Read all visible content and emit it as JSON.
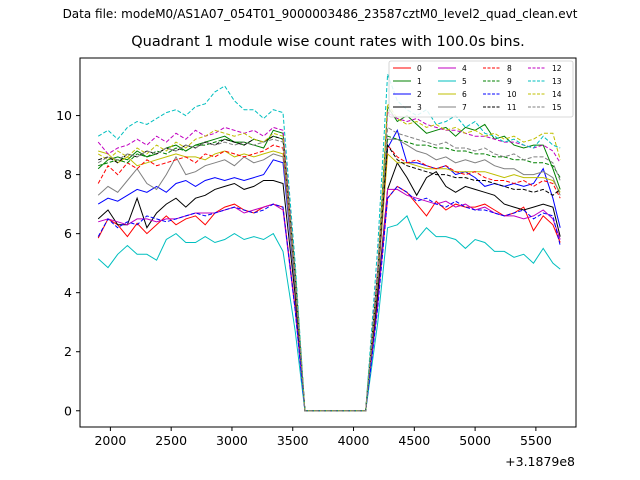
{
  "figure": {
    "suptitle": "Data file: modeM0/AS1A07_054T01_9000003486_23587cztM0_level2_quad_clean.evt"
  },
  "chart_data": {
    "type": "line",
    "title": "Quadrant 1 module wise count rates with 100.0s bins.",
    "xlabel": "",
    "ylabel": "",
    "x_offset_text": "+3.1879e8",
    "xlim": [
      1750,
      5830
    ],
    "ylim": [
      -0.55,
      11.95
    ],
    "xticks": [
      2000,
      2500,
      3000,
      3500,
      4000,
      4500,
      5000,
      5500
    ],
    "xtick_labels": [
      "2000",
      "2500",
      "3000",
      "3500",
      "4000",
      "4500",
      "5000",
      "5500"
    ],
    "yticks": [
      0,
      2,
      4,
      6,
      8,
      10
    ],
    "ytick_labels": [
      "0",
      "2",
      "4",
      "6",
      "8",
      "10"
    ],
    "grid": false,
    "legend_location": "top-right",
    "legend_columns": 4,
    "x": [
      1900,
      1980,
      2060,
      2140,
      2220,
      2300,
      2380,
      2460,
      2540,
      2620,
      2700,
      2780,
      2860,
      2940,
      3020,
      3100,
      3180,
      3260,
      3340,
      3420,
      3520,
      3600,
      3700,
      3800,
      3900,
      4000,
      4100,
      4200,
      4280,
      4360,
      4440,
      4520,
      4600,
      4680,
      4760,
      4840,
      4920,
      5000,
      5080,
      5160,
      5240,
      5320,
      5400,
      5480,
      5560,
      5640,
      5700
    ],
    "series": [
      {
        "name": "0",
        "color": "#ff0000",
        "dash": "solid",
        "values": [
          5.85,
          6.5,
          6.3,
          5.9,
          6.35,
          6.0,
          6.3,
          6.6,
          6.3,
          6.5,
          6.6,
          6.3,
          6.7,
          6.9,
          7.0,
          6.8,
          6.7,
          6.9,
          7.0,
          6.9,
          3.5,
          0,
          0,
          0,
          0,
          0,
          0,
          3.7,
          7.2,
          7.6,
          7.4,
          7.0,
          6.6,
          7.1,
          6.8,
          7.0,
          6.9,
          6.9,
          7.0,
          6.8,
          6.6,
          6.7,
          6.9,
          6.1,
          6.6,
          6.3,
          5.7
        ]
      },
      {
        "name": "1",
        "color": "#008000",
        "dash": "solid",
        "values": [
          8.2,
          8.5,
          8.6,
          8.5,
          8.8,
          8.6,
          8.7,
          8.9,
          9.0,
          8.8,
          9.0,
          9.1,
          9.2,
          9.3,
          9.1,
          9.1,
          9.0,
          8.9,
          9.5,
          9.4,
          4.7,
          0,
          0,
          0,
          0,
          0,
          0,
          4.8,
          10.3,
          9.8,
          10.0,
          9.7,
          9.4,
          9.5,
          9.6,
          9.3,
          9.6,
          9.5,
          9.7,
          9.2,
          9.3,
          9.0,
          8.9,
          9.0,
          9.0,
          8.2,
          7.5
        ]
      },
      {
        "name": "2",
        "color": "#0000ff",
        "dash": "solid",
        "values": [
          7.0,
          7.2,
          7.1,
          7.3,
          7.5,
          7.4,
          7.6,
          7.4,
          7.7,
          7.8,
          7.6,
          7.8,
          7.9,
          7.8,
          7.9,
          7.8,
          7.9,
          8.0,
          8.5,
          8.4,
          4.2,
          0,
          0,
          0,
          0,
          0,
          0,
          4.3,
          8.9,
          9.5,
          8.4,
          8.4,
          8.3,
          8.2,
          8.3,
          8.0,
          8.1,
          7.9,
          7.6,
          7.7,
          7.6,
          7.7,
          7.6,
          7.7,
          8.2,
          7.2,
          6.2
        ]
      },
      {
        "name": "3",
        "color": "#000000",
        "dash": "solid",
        "values": [
          6.5,
          6.8,
          6.3,
          6.3,
          7.2,
          6.2,
          6.7,
          7.0,
          7.2,
          6.9,
          7.2,
          7.3,
          7.5,
          7.6,
          7.7,
          7.5,
          7.6,
          7.8,
          7.8,
          7.7,
          3.9,
          0,
          0,
          0,
          0,
          0,
          0,
          4.0,
          7.5,
          8.4,
          7.9,
          7.3,
          7.9,
          8.1,
          7.6,
          7.4,
          7.6,
          7.5,
          7.4,
          7.3,
          7.0,
          6.9,
          6.8,
          6.9,
          7.0,
          6.9,
          5.9
        ]
      },
      {
        "name": "4",
        "color": "#c000c0",
        "dash": "solid",
        "values": [
          6.4,
          6.5,
          6.4,
          6.3,
          6.5,
          6.5,
          6.4,
          6.5,
          6.5,
          6.6,
          6.7,
          6.7,
          6.7,
          6.8,
          6.9,
          6.7,
          6.8,
          6.9,
          7.0,
          6.8,
          3.4,
          0,
          0,
          0,
          0,
          0,
          0,
          3.6,
          7.5,
          7.5,
          7.3,
          7.2,
          7.1,
          7.0,
          7.1,
          6.9,
          7.0,
          6.8,
          6.9,
          6.7,
          6.6,
          6.6,
          6.5,
          6.6,
          6.8,
          6.5,
          5.8
        ]
      },
      {
        "name": "5",
        "color": "#00bfbf",
        "dash": "solid",
        "values": [
          5.15,
          4.85,
          5.3,
          5.6,
          5.3,
          5.3,
          5.1,
          5.8,
          6.0,
          5.7,
          5.7,
          5.9,
          5.7,
          5.8,
          6.0,
          5.8,
          5.9,
          5.8,
          6.0,
          5.4,
          2.7,
          0,
          0,
          0,
          0,
          0,
          0,
          3.0,
          6.2,
          6.3,
          6.6,
          5.8,
          6.2,
          5.9,
          5.9,
          5.8,
          5.5,
          5.8,
          5.7,
          5.4,
          5.4,
          5.2,
          5.3,
          5.0,
          5.5,
          5.0,
          4.8
        ]
      },
      {
        "name": "6",
        "color": "#bfbf00",
        "dash": "solid",
        "values": [
          8.8,
          8.7,
          8.4,
          8.6,
          8.3,
          8.4,
          8.5,
          8.6,
          8.7,
          8.6,
          8.6,
          8.5,
          8.7,
          8.8,
          8.6,
          8.7,
          8.6,
          8.7,
          8.8,
          8.7,
          4.3,
          0,
          0,
          0,
          0,
          0,
          0,
          4.4,
          8.7,
          8.4,
          8.4,
          8.3,
          8.2,
          8.2,
          8.2,
          8.1,
          8.1,
          8.1,
          8.1,
          8.0,
          7.9,
          8.0,
          7.9,
          7.9,
          7.9,
          7.8,
          7.4
        ]
      },
      {
        "name": "7",
        "color": "#808080",
        "dash": "solid",
        "values": [
          7.3,
          7.6,
          7.4,
          7.8,
          8.2,
          7.7,
          7.5,
          8.0,
          8.6,
          8.0,
          8.1,
          8.3,
          8.4,
          8.5,
          8.3,
          8.6,
          8.4,
          8.5,
          8.7,
          8.6,
          4.3,
          0,
          0,
          0,
          0,
          0,
          0,
          4.4,
          9.2,
          9.2,
          9.0,
          8.8,
          8.7,
          8.5,
          8.6,
          8.4,
          8.5,
          8.4,
          8.5,
          8.3,
          8.2,
          8.2,
          8.0,
          8.0,
          8.1,
          7.9,
          7.3
        ]
      },
      {
        "name": "8",
        "color": "#ff0000",
        "dash": "dashed",
        "values": [
          7.7,
          8.3,
          8.0,
          8.4,
          8.2,
          8.5,
          8.3,
          8.4,
          8.5,
          8.6,
          8.4,
          8.7,
          8.6,
          8.8,
          8.7,
          8.6,
          8.7,
          8.8,
          9.0,
          8.9,
          4.5,
          0,
          0,
          0,
          0,
          0,
          0,
          4.5,
          9.0,
          8.6,
          8.4,
          8.5,
          8.3,
          8.2,
          8.3,
          8.1,
          8.0,
          8.1,
          7.9,
          7.8,
          7.8,
          7.7,
          7.8,
          7.6,
          7.8,
          7.7,
          7.2
        ]
      },
      {
        "name": "9",
        "color": "#008000",
        "dash": "dashed",
        "values": [
          8.3,
          8.4,
          8.5,
          8.4,
          8.7,
          8.6,
          8.8,
          8.7,
          8.9,
          8.8,
          9.0,
          9.0,
          9.1,
          9.2,
          9.1,
          9.0,
          9.2,
          9.1,
          9.3,
          9.2,
          4.6,
          0,
          0,
          0,
          0,
          0,
          0,
          4.6,
          9.3,
          9.2,
          9.1,
          9.0,
          9.0,
          8.9,
          8.9,
          8.8,
          8.8,
          8.7,
          8.7,
          8.6,
          8.6,
          8.5,
          8.5,
          8.4,
          8.4,
          8.3,
          7.9
        ]
      },
      {
        "name": "10",
        "color": "#0000ff",
        "dash": "dashed",
        "values": [
          5.9,
          6.5,
          6.2,
          6.4,
          6.3,
          6.6,
          6.5,
          6.4,
          6.5,
          6.6,
          6.7,
          6.6,
          6.7,
          6.8,
          6.9,
          6.8,
          6.7,
          6.8,
          7.0,
          6.9,
          3.4,
          0,
          0,
          0,
          0,
          0,
          0,
          3.5,
          7.2,
          7.6,
          7.4,
          7.1,
          7.2,
          7.0,
          6.9,
          7.1,
          6.9,
          6.8,
          6.8,
          6.7,
          6.6,
          6.7,
          6.8,
          6.5,
          6.7,
          6.6,
          5.6
        ]
      },
      {
        "name": "11",
        "color": "#000000",
        "dash": "dashed",
        "values": [
          8.5,
          8.6,
          8.4,
          8.7,
          8.6,
          8.8,
          8.7,
          8.9,
          8.8,
          9.0,
          8.9,
          9.1,
          9.0,
          9.2,
          9.1,
          9.0,
          9.2,
          9.1,
          9.3,
          9.2,
          4.6,
          0,
          0,
          0,
          0,
          0,
          0,
          4.7,
          9.0,
          8.5,
          8.3,
          8.2,
          8.1,
          8.0,
          8.0,
          7.9,
          7.9,
          7.8,
          7.8,
          7.7,
          7.6,
          7.5,
          7.5,
          7.4,
          7.5,
          7.3,
          7.5
        ]
      },
      {
        "name": "12",
        "color": "#c000c0",
        "dash": "dashed",
        "values": [
          9.1,
          8.7,
          8.9,
          9.0,
          9.2,
          9.0,
          9.3,
          9.1,
          9.4,
          9.2,
          9.5,
          9.3,
          9.4,
          9.6,
          9.5,
          9.4,
          9.5,
          9.3,
          9.6,
          9.5,
          4.8,
          0,
          0,
          0,
          0,
          0,
          0,
          4.9,
          10.1,
          9.9,
          9.8,
          9.9,
          9.7,
          9.6,
          9.5,
          9.5,
          9.4,
          9.3,
          9.3,
          9.2,
          9.1,
          9.1,
          9.0,
          8.9,
          9.0,
          8.8,
          8.4
        ]
      },
      {
        "name": "13",
        "color": "#00bfbf",
        "dash": "dashed",
        "values": [
          9.3,
          9.5,
          9.2,
          9.6,
          9.8,
          9.7,
          9.9,
          10.1,
          10.2,
          10.0,
          10.3,
          10.4,
          10.8,
          11.0,
          10.5,
          10.2,
          10.2,
          9.9,
          10.2,
          10.1,
          5.0,
          0,
          0,
          0,
          0,
          0,
          0,
          5.6,
          11.4,
          10.5,
          10.2,
          10.0,
          10.2,
          9.7,
          9.8,
          10.0,
          9.6,
          9.8,
          9.4,
          9.3,
          9.1,
          9.2,
          9.0,
          8.9,
          9.3,
          9.0,
          8.9
        ]
      },
      {
        "name": "14",
        "color": "#bfbf00",
        "dash": "dashed",
        "values": [
          8.7,
          8.5,
          8.8,
          8.6,
          8.9,
          8.7,
          9.0,
          8.8,
          9.1,
          8.9,
          9.2,
          9.3,
          9.5,
          9.4,
          9.3,
          9.4,
          9.2,
          9.1,
          9.4,
          9.3,
          4.6,
          0,
          0,
          0,
          0,
          0,
          0,
          4.7,
          10.4,
          9.9,
          9.7,
          9.8,
          9.6,
          9.7,
          9.5,
          9.6,
          9.4,
          9.5,
          9.3,
          9.4,
          9.2,
          9.3,
          9.1,
          9.2,
          9.4,
          9.4,
          8.5
        ]
      },
      {
        "name": "15",
        "color": "#808080",
        "dash": "dashed",
        "values": [
          8.4,
          8.6,
          8.5,
          8.7,
          8.6,
          8.8,
          8.7,
          8.9,
          8.8,
          9.0,
          8.9,
          9.1,
          9.0,
          9.1,
          9.0,
          9.1,
          9.0,
          9.1,
          9.2,
          9.1,
          4.5,
          0,
          0,
          0,
          0,
          0,
          0,
          4.6,
          9.6,
          9.4,
          9.3,
          9.2,
          9.1,
          9.0,
          9.1,
          8.9,
          8.9,
          8.8,
          8.9,
          8.7,
          8.6,
          8.7,
          8.5,
          8.6,
          8.6,
          8.4,
          7.8
        ]
      }
    ]
  }
}
